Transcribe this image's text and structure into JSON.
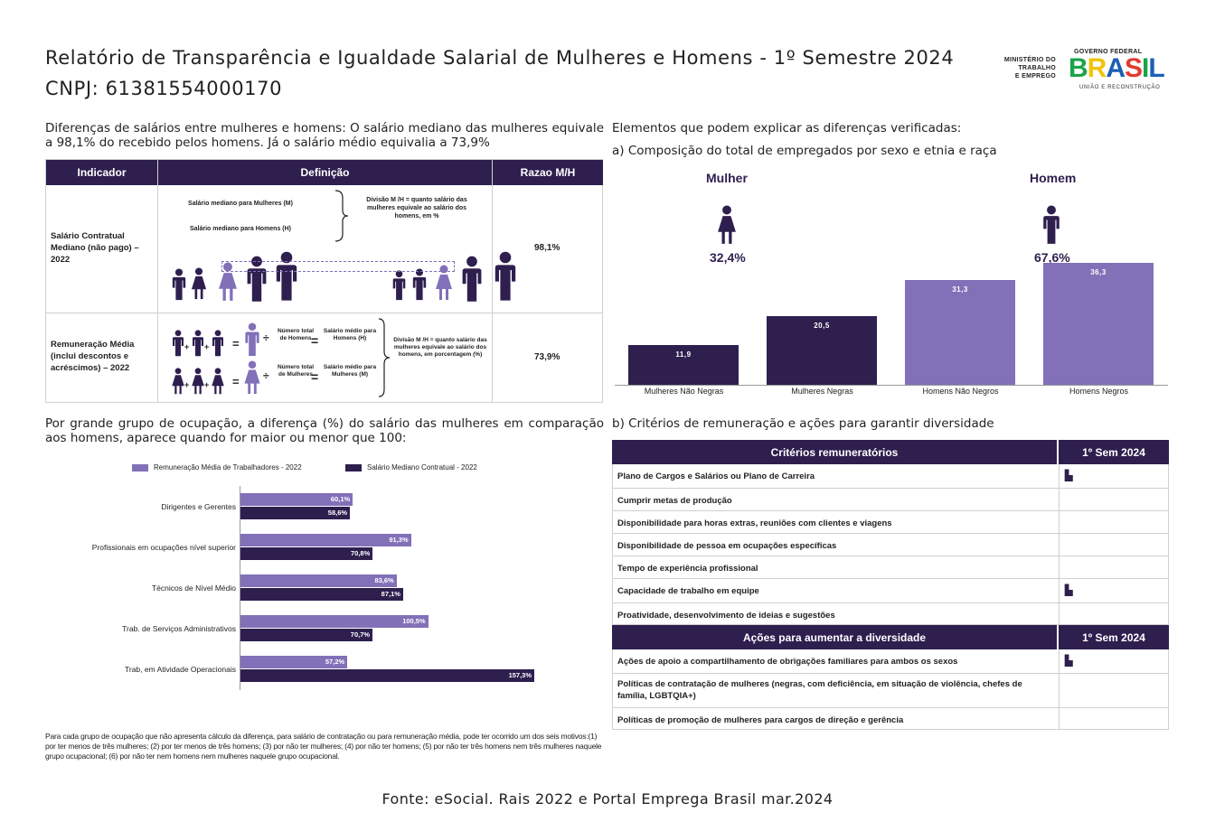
{
  "header": {
    "title": "Relatório de Transparência e Igualdade Salarial de Mulheres e Homens - 1º Semestre 2024",
    "cnpj": "CNPJ: 61381554000170",
    "ministry_lines": [
      "MINISTÉRIO DO",
      "TRABALHO",
      "E EMPREGO"
    ],
    "gov_top": "GOVERNO FEDERAL",
    "gov_brand": "BRASIL",
    "gov_bottom": "UNIÃO E RECONSTRUÇÃO"
  },
  "differences": {
    "text": "Diferenças de salários entre mulheres e homens: O salário mediano das mulheres equivale a 98,1% do recebido pelos homens. Já o salário médio equivalia a 73,9%",
    "table": {
      "headers": [
        "Indicador",
        "Definição",
        "Razao M/H"
      ],
      "rows": [
        {
          "label": "Salário Contratual Mediano (não pago) – 2022",
          "def_m": "Salário mediano para Mulheres (M)",
          "def_h": "Salário mediano para Homens (H)",
          "def_div": "Divisão M /H = quanto salário das mulheres equivale ao salário dos homens, em %",
          "ratio": "98,1%"
        },
        {
          "label": "Remuneração Média (inclui descontos e acréscimos) – 2022",
          "num_h": "Número total de Homens",
          "sal_h": "Salário médio para Homens (H)",
          "num_m": "Número total de Mulheres",
          "sal_m": "Salário médio para Mulheres (M)",
          "def_div": "Divisão M /H = quanto salário das mulheres equivale ao salário dos homens, em porcentagem (%)",
          "ratio": "73,9%"
        }
      ]
    }
  },
  "occupation": {
    "text": "Por grande grupo de ocupação, a diferença (%) do salário das mulheres em comparação aos homens, aparece quando for maior ou menor que 100:",
    "chart_data": {
      "type": "bar",
      "orientation": "horizontal",
      "categories": [
        "Dirigentes e Gerentes",
        "Profissionais em ocupações nível superior",
        "Técnicos de Nível Médio",
        "Trab. de Serviços Administrativos",
        "Trab, em Atividade Operacionais"
      ],
      "series": [
        {
          "name": "Remuneração Média de Trabalhadores - 2022",
          "values": [
            60.1,
            91.3,
            83.6,
            100.5,
            57.2
          ],
          "labels": [
            "60,1%",
            "91,3%",
            "83,6%",
            "100,5%",
            "57,2%"
          ],
          "color": "#8270b8"
        },
        {
          "name": "Salário Mediano Contratual - 2022",
          "values": [
            58.6,
            70.8,
            87.1,
            70.7,
            157.3
          ],
          "labels": [
            "58,6%",
            "70,8%",
            "87,1%",
            "70,7%",
            "157,3%"
          ],
          "color": "#2e1f4f"
        }
      ],
      "xlim": [
        0,
        160
      ],
      "legend": "top"
    },
    "footnote": "Para cada grupo de ocupação que não apresenta cálculo da diferença, para salário de contratação ou para remuneração média, pode ter ocorrido um dos seis motivos:(1) por ter menos de três mulheres; (2) por ter menos de três homens; (3) por não ter mulheres; (4) por não ter homens; (5) por não ter três homens nem três mulheres naquele grupo ocupacional; (6) por não ter nem homens nem mulheres naquele grupo ocupacional."
  },
  "elements": {
    "title": "Elementos que podem explicar as diferenças verificadas:",
    "composition_title": "a) Composição do total de empregados por sexo e etnia e raça",
    "woman_label": "Mulher",
    "man_label": "Homem",
    "woman_pct": "32,4%",
    "man_pct": "67,6%",
    "chart_data": {
      "type": "bar",
      "categories": [
        "Mulheres Não Negras",
        "Mulheres Negras",
        "Homens Não Negros",
        "Homens Negros"
      ],
      "values": [
        11.9,
        20.5,
        31.3,
        36.3
      ],
      "labels": [
        "11,9",
        "20,5",
        "31,3",
        "36,3"
      ],
      "colors": [
        "#2e1f4f",
        "#2e1f4f",
        "#8270b8",
        "#8270b8"
      ],
      "ylim": [
        0,
        40
      ]
    }
  },
  "criteria": {
    "title": "b) Critérios de remuneração e ações para garantir diversidade",
    "head1": "Critérios remuneratórios",
    "head1_col": "1º Sem 2024",
    "rows1": [
      {
        "label": "Plano de Cargos e Salários ou Plano de Carreira",
        "mark": true
      },
      {
        "label": "Cumprir metas de produção",
        "mark": false
      },
      {
        "label": "Disponibilidade para horas extras, reuniões com clientes e viagens",
        "mark": false
      },
      {
        "label": "Disponibilidade de pessoa em ocupações específicas",
        "mark": false
      },
      {
        "label": "Tempo de experiência profissional",
        "mark": false
      },
      {
        "label": "Capacidade de trabalho em equipe",
        "mark": true
      },
      {
        "label": "Proatividade, desenvolvimento de ideias e sugestões",
        "mark": false
      }
    ],
    "head2": "Ações para aumentar a diversidade",
    "head2_col": "1º Sem 2024",
    "rows2": [
      {
        "label": "Ações de apoio a compartilhamento de obrigações familiares para ambos os sexos",
        "mark": true
      },
      {
        "label": "Políticas de contratação de mulheres (negras, com deficiência, em situação de violência, chefes de família, LGBTQIA+)",
        "mark": false
      },
      {
        "label": "Políticas de promoção de mulheres para cargos de direção e gerência",
        "mark": false
      }
    ],
    "mark_icon": "building-check-icon"
  },
  "source": "Fonte: eSocial. Rais 2022 e Portal Emprega Brasil mar.2024"
}
